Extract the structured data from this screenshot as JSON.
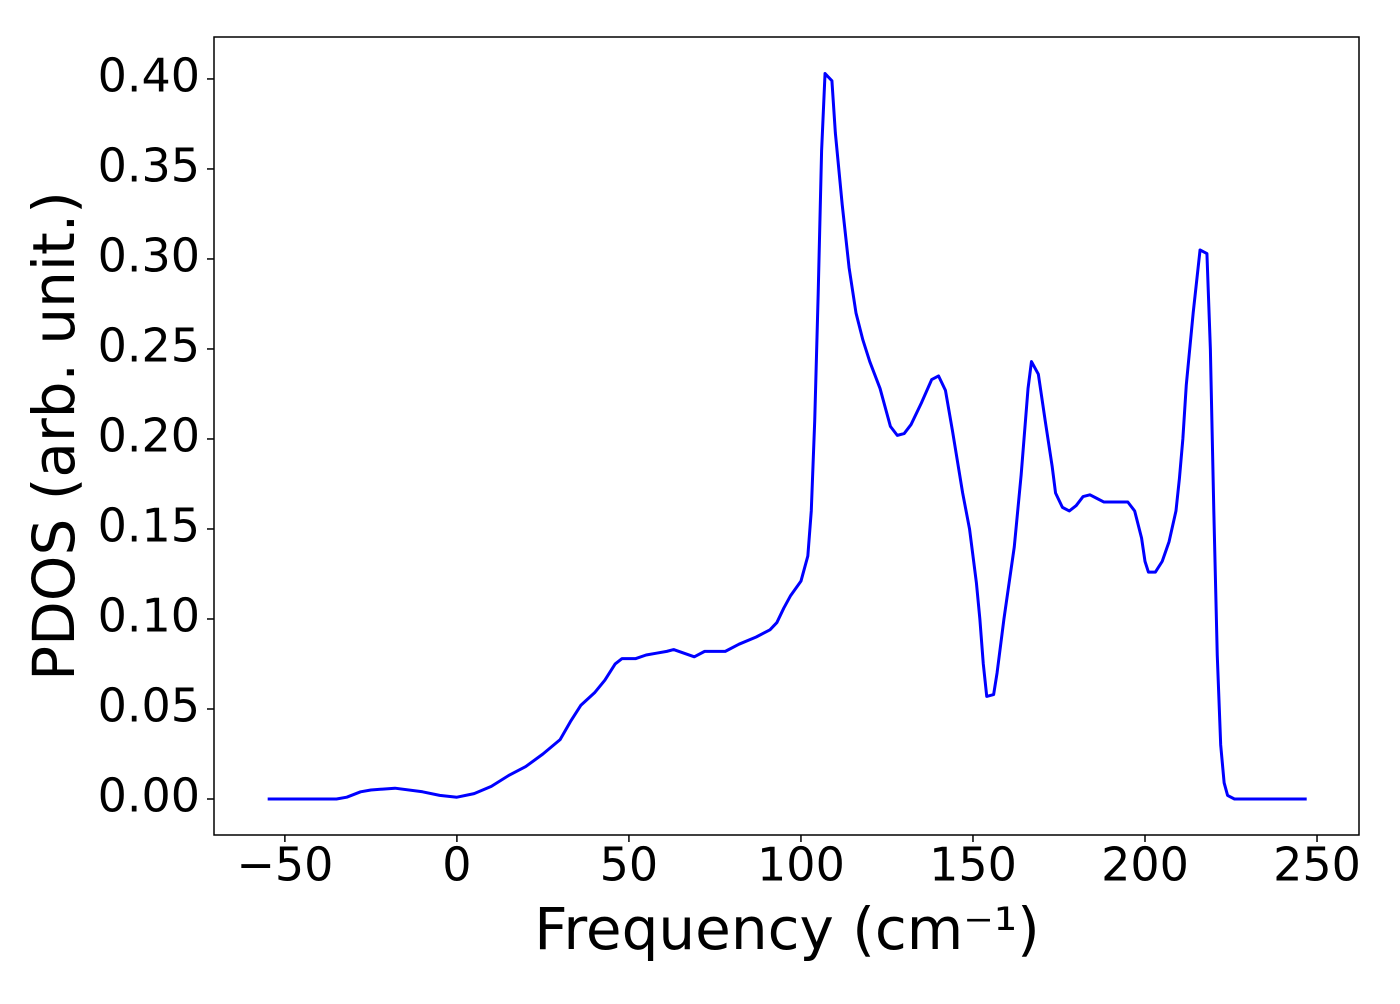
{
  "chart_data": {
    "type": "line",
    "xlabel": "Frequency (cm⁻¹)",
    "ylabel": "PDOS (arb. unit.)",
    "xlim": [
      -70.6,
      262.2
    ],
    "ylim": [
      -0.02,
      0.4233
    ],
    "xticks": [
      {
        "value": -50,
        "label": "−50"
      },
      0,
      50,
      100,
      150,
      200,
      250
    ],
    "yticks": [
      {
        "value": 0,
        "label": "0.00"
      },
      {
        "value": 0.05,
        "label": "0.05"
      },
      {
        "value": 0.1,
        "label": "0.10"
      },
      {
        "value": 0.15,
        "label": "0.15"
      },
      {
        "value": 0.2,
        "label": "0.20"
      },
      {
        "value": 0.25,
        "label": "0.25"
      },
      {
        "value": 0.3,
        "label": "0.30"
      },
      {
        "value": 0.35,
        "label": "0.35"
      },
      {
        "value": 0.4,
        "label": "0.40"
      }
    ],
    "grid": false,
    "series": [
      {
        "color": "#0000ff",
        "x": [
          -55,
          -35,
          -32,
          -28,
          -25,
          -18,
          -10,
          -5,
          0,
          5,
          10,
          15,
          20,
          25,
          30,
          33,
          36,
          40,
          43,
          46,
          48,
          52,
          55,
          58,
          61,
          63,
          66,
          69,
          72,
          75,
          78,
          82,
          87,
          91,
          93,
          95,
          97,
          100,
          102,
          103,
          104,
          105,
          106,
          107,
          109,
          110,
          112,
          114,
          116,
          118,
          120,
          123,
          126,
          128,
          130,
          132,
          135,
          138,
          140,
          142,
          144,
          147,
          149,
          151,
          152,
          153,
          154,
          156,
          157,
          159,
          162,
          164,
          166,
          167,
          169,
          171,
          173,
          174,
          176,
          178,
          180,
          182,
          184,
          186,
          188,
          192,
          195,
          197,
          199,
          200,
          201,
          203,
          205,
          207,
          209,
          210,
          211,
          212,
          214,
          216,
          218,
          219,
          220,
          221,
          222,
          223,
          224,
          226,
          247
        ],
        "values": [
          0,
          0,
          0.001,
          0.004,
          0.005,
          0.006,
          0.004,
          0.002,
          0.001,
          0.003,
          0.007,
          0.013,
          0.018,
          0.025,
          0.033,
          0.043,
          0.052,
          0.059,
          0.066,
          0.075,
          0.078,
          0.078,
          0.08,
          0.081,
          0.082,
          0.083,
          0.081,
          0.079,
          0.082,
          0.082,
          0.082,
          0.086,
          0.09,
          0.094,
          0.098,
          0.106,
          0.113,
          0.121,
          0.135,
          0.16,
          0.21,
          0.28,
          0.36,
          0.403,
          0.399,
          0.37,
          0.33,
          0.295,
          0.27,
          0.255,
          0.243,
          0.228,
          0.207,
          0.202,
          0.203,
          0.208,
          0.22,
          0.233,
          0.235,
          0.227,
          0.205,
          0.17,
          0.15,
          0.12,
          0.1,
          0.075,
          0.057,
          0.058,
          0.07,
          0.1,
          0.14,
          0.18,
          0.228,
          0.243,
          0.236,
          0.21,
          0.185,
          0.17,
          0.162,
          0.16,
          0.163,
          0.168,
          0.169,
          0.167,
          0.165,
          0.165,
          0.165,
          0.16,
          0.145,
          0.132,
          0.126,
          0.126,
          0.132,
          0.143,
          0.16,
          0.178,
          0.2,
          0.23,
          0.27,
          0.305,
          0.303,
          0.25,
          0.16,
          0.08,
          0.03,
          0.009,
          0.002,
          0,
          0
        ]
      }
    ]
  }
}
